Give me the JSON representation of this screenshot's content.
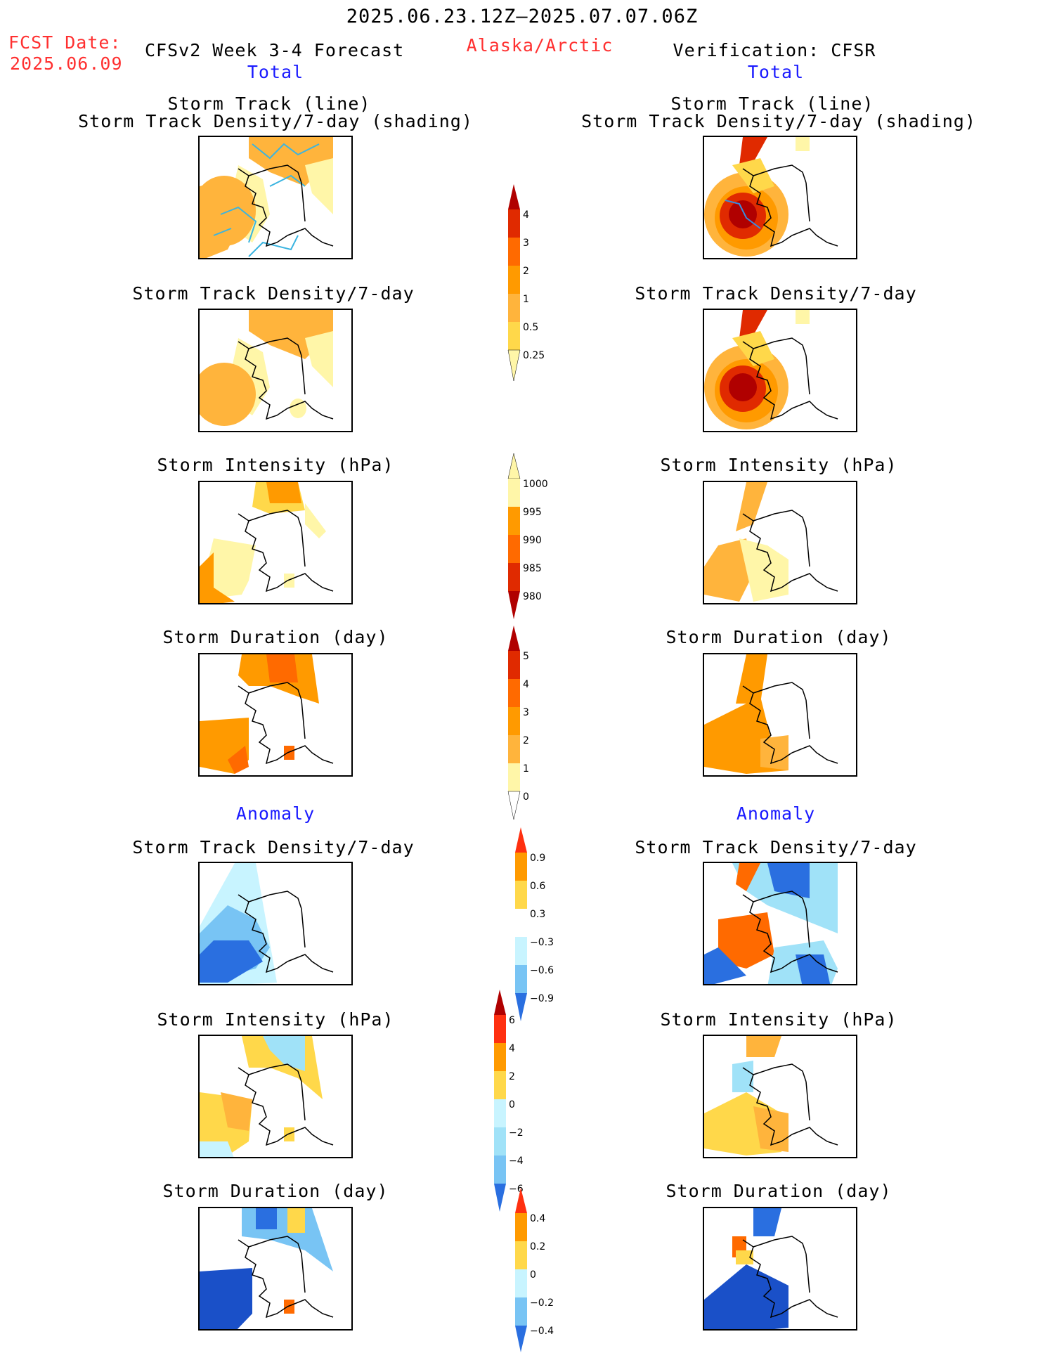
{
  "header": {
    "period": "2025.06.23.12Z–2025.07.07.06Z",
    "fcst_label": "FCST Date:",
    "fcst_date": "2025.06.09",
    "forecast_title": "CFSv2 Week 3-4 Forecast",
    "region": "Alaska/Arctic",
    "verification": "Verification: CFSR"
  },
  "sections": {
    "total": "Total",
    "anomaly": "Anomaly"
  },
  "panel_titles": {
    "track_line": "Storm Track (line)",
    "track_shading": "Storm Track Density/7-day (shading)",
    "density": "Storm Track Density/7-day",
    "intensity": "Storm Intensity (hPa)",
    "duration": "Storm Duration (day)"
  },
  "colorbars": {
    "density_total": [
      "0.25",
      "0.5",
      "1",
      "2",
      "3",
      "4"
    ],
    "intensity_total": [
      "1000",
      "995",
      "990",
      "985",
      "980"
    ],
    "duration_total": [
      "0",
      "1",
      "2",
      "3",
      "4",
      "5"
    ],
    "density_anom": [
      "0.9",
      "0.6",
      "0.3",
      "−0.3",
      "−0.6",
      "−0.9"
    ],
    "intensity_anom": [
      "6",
      "4",
      "2",
      "0",
      "−2",
      "−4",
      "−6"
    ],
    "duration_anom": [
      "0.4",
      "0.2",
      "0",
      "−0.2",
      "−0.4"
    ]
  },
  "colors": {
    "warm": [
      "#fff6a8",
      "#ffd84a",
      "#ffb43c",
      "#ff9a00",
      "#ff6a00",
      "#e02a00",
      "#b00000"
    ],
    "cool": [
      "#c8f4ff",
      "#a0e2f8",
      "#78c4f4",
      "#4f9ff0",
      "#2a6fe0",
      "#1a50c8"
    ],
    "title_red": "#ff3030",
    "title_blue": "#1a1aff"
  }
}
